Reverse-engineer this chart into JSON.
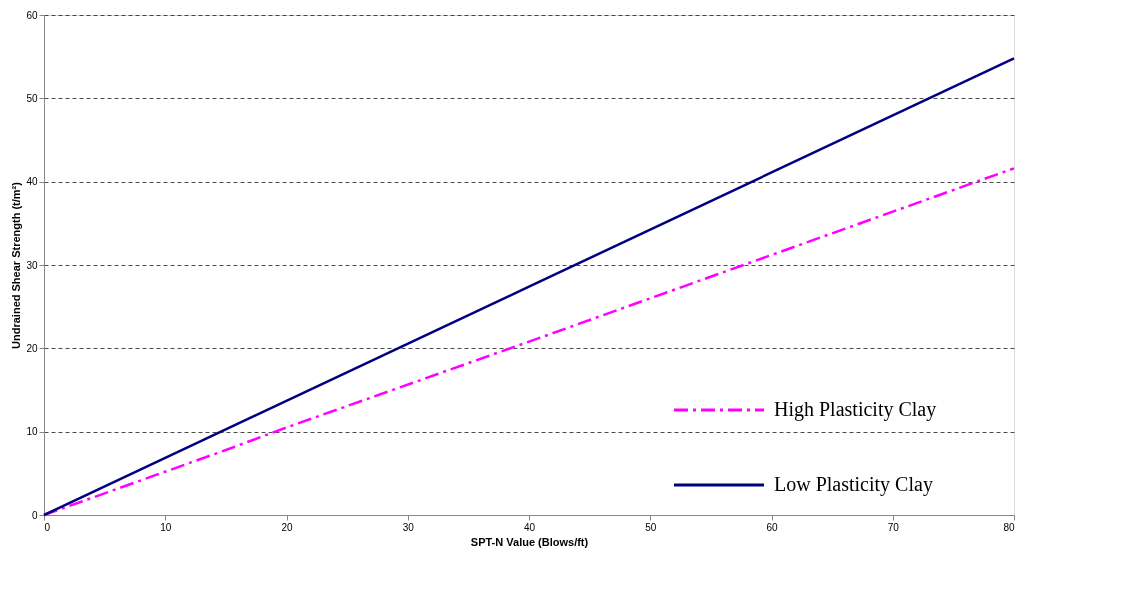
{
  "chart_data": {
    "type": "line",
    "xlabel": "SPT-N Value (Blows/ft)",
    "ylabel": "Undrained Shear Strength (t/m²)",
    "xlim": [
      0,
      80
    ],
    "xticks": [
      0,
      10,
      20,
      30,
      40,
      50,
      60,
      70,
      80
    ],
    "ylim": [
      0,
      60
    ],
    "yticks": [
      0,
      10,
      20,
      30,
      40,
      50,
      60
    ],
    "grid": "y",
    "legend": "bottom right",
    "marker": "none",
    "series": [
      {
        "name": "High Plasticity Clay",
        "color": "#ff00ff",
        "line_style": "dashed",
        "x": [
          0,
          15,
          20,
          40,
          60,
          80
        ],
        "values": [
          0,
          7.8,
          10.5,
          20.8,
          31.2,
          41.6
        ]
      },
      {
        "name": "Low Plasticity Clay",
        "color": "#000080",
        "line_style": "solid",
        "x": [
          0,
          40,
          80
        ],
        "values": [
          0,
          27.4,
          54.8
        ]
      }
    ]
  }
}
